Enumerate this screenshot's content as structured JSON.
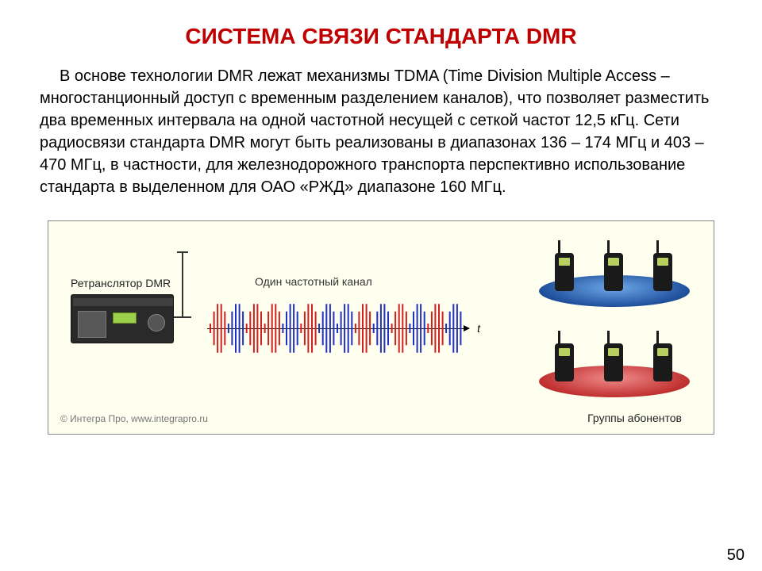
{
  "title": {
    "text": "СИСТЕМА СВЯЗИ СТАНДАРТА DMR",
    "color": "#c00000",
    "fontsize": 28
  },
  "body": {
    "text": "В основе технологии DMR лежат механизмы TDMA (Time Division Multiple Access – многостанционный доступ с временным разделением каналов), что позволяет разместить два временных интервала на одной частотной несущей с сеткой частот 12,5 кГц. Сети радиосвязи стандарта DMR могут быть реализованы в диапазонах 136 – 174 МГц и 403 – 470 МГц, в частности, для железнодорожного транспорта перспективно использование стандарта в выделенном для ОАО «РЖД» диапазоне 160 МГц.",
    "fontsize": 20,
    "color": "#000000"
  },
  "diagram": {
    "background": "#fffff0",
    "repeater_label": "Ретранслятор DMR",
    "freq_label": "Один частотный канал",
    "groups_label": "Группы абонентов",
    "axis_label": "t",
    "wave": {
      "red": "#d02020",
      "blue": "#2030c0",
      "segments": [
        "red",
        "blue",
        "red",
        "red",
        "blue",
        "red",
        "blue",
        "blue",
        "red",
        "blue",
        "red",
        "blue",
        "red",
        "blue"
      ]
    },
    "ellipse_colors": {
      "blue": "#1e4f9b",
      "red": "#c03030"
    },
    "copyright": "© Интегра Про, www.integrapro.ru"
  },
  "page_number": "50"
}
